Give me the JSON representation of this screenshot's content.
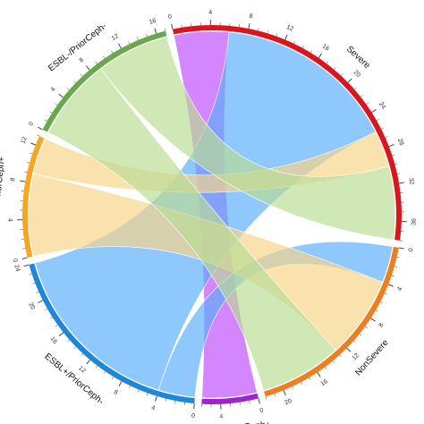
{
  "chart_data": {
    "type": "chord",
    "unit_label": "counts",
    "groups": [
      {
        "name": "Severe",
        "size": 38,
        "color": "#d9161f",
        "label_side": "outer",
        "ticks": [
          "0",
          "4",
          "8",
          "12",
          "16",
          "20",
          "24",
          "28",
          "32",
          "36"
        ]
      },
      {
        "name": "NonSevere",
        "size": 22,
        "color": "#ef7d22",
        "label_side": "outer",
        "ticks": [
          "0",
          "4",
          "8",
          "12",
          "16",
          "20"
        ]
      },
      {
        "name": "ESBL+/PriorCeph+",
        "size": 6,
        "color": "#9b27c9",
        "label_side": "outer",
        "ticks": [
          "0",
          "4"
        ]
      },
      {
        "name": "ESBL+/PriorCeph-",
        "size": 24,
        "color": "#1f87d8",
        "label_side": "outer",
        "ticks": [
          "0",
          "4",
          "8",
          "12",
          "16",
          "20",
          "24"
        ]
      },
      {
        "name": "ESBL-/PriorCeph+",
        "size": 13,
        "color": "#f5a623",
        "label_side": "outer",
        "ticks": [
          "0",
          "4",
          "8",
          "12"
        ]
      },
      {
        "name": "ESBL-/PriorCeph-",
        "size": 17,
        "color": "#6aa84f",
        "label_side": "outer",
        "ticks": [
          "0",
          "4",
          "8",
          "12",
          "16"
        ]
      }
    ],
    "flows": [
      {
        "from": "Severe",
        "to": "ESBL+/PriorCeph+",
        "value": 6,
        "color": "#c04dff"
      },
      {
        "from": "Severe",
        "to": "ESBL+/PriorCeph-",
        "value": 20,
        "color": "#5aaefb"
      },
      {
        "from": "Severe",
        "to": "ESBL-/PriorCeph+",
        "value": 4,
        "color": "#f8d489"
      },
      {
        "from": "Severe",
        "to": "ESBL-/PriorCeph-",
        "value": 8,
        "color": "#b9dc94"
      },
      {
        "from": "NonSevere",
        "to": "ESBL+/PriorCeph-",
        "value": 4,
        "color": "#5aaefb"
      },
      {
        "from": "NonSevere",
        "to": "ESBL-/PriorCeph+",
        "value": 9,
        "color": "#f8d489"
      },
      {
        "from": "NonSevere",
        "to": "ESBL-/PriorCeph-",
        "value": 9,
        "color": "#b9dc94"
      }
    ]
  }
}
